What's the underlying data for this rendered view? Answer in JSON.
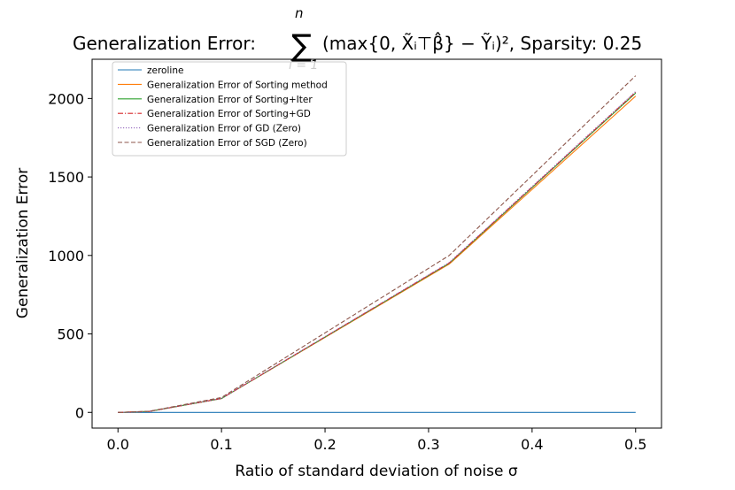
{
  "chart_data": {
    "type": "line",
    "title_parts": {
      "prefix": "Generalization Error: ",
      "sum_top": "n",
      "sum_symbol": "∑",
      "sum_bottom": "i = 1",
      "expression": "(max{0, X̃ᵢ⊤β̂} − Ỹᵢ)², Sparsity: 0.25"
    },
    "xlabel": "Ratio of standard deviation of noise σ",
    "ylabel": "Generalization Error",
    "xlim": [
      -0.025,
      0.525
    ],
    "ylim": [
      -100,
      2250
    ],
    "xticks": [
      0.0,
      0.1,
      0.2,
      0.3,
      0.4,
      0.5
    ],
    "xtick_labels": [
      "0.0",
      "0.1",
      "0.2",
      "0.3",
      "0.4",
      "0.5"
    ],
    "yticks": [
      0,
      500,
      1000,
      1500,
      2000
    ],
    "ytick_labels": [
      "0",
      "500",
      "1000",
      "1500",
      "2000"
    ],
    "grid": false,
    "legend_position": "upper-left",
    "x": [
      0.0,
      0.03,
      0.1,
      0.32,
      0.5
    ],
    "series": [
      {
        "name": "zeroline",
        "values": [
          0,
          0,
          0,
          0,
          0
        ],
        "color": "#1f77b4",
        "dash": "solid"
      },
      {
        "name": "Generalization Error of Sorting method",
        "values": [
          0,
          6,
          88,
          945,
          2015
        ],
        "color": "#ff7f0e",
        "dash": "solid"
      },
      {
        "name": "Generalization Error of Sorting+Iter",
        "values": [
          0,
          6,
          88,
          950,
          2035
        ],
        "color": "#2ca02c",
        "dash": "solid"
      },
      {
        "name": "Generalization Error of Sorting+GD",
        "values": [
          0,
          6,
          89,
          952,
          2040
        ],
        "color": "#d62728",
        "dash": "dashdot"
      },
      {
        "name": "Generalization Error of GD (Zero)",
        "values": [
          0,
          6,
          89,
          955,
          2045
        ],
        "color": "#9467bd",
        "dash": "dotted"
      },
      {
        "name": "Generalization Error of SGD (Zero)",
        "values": [
          0,
          7,
          95,
          1000,
          2145
        ],
        "color": "#8c564b",
        "dash": "dashed"
      }
    ]
  }
}
